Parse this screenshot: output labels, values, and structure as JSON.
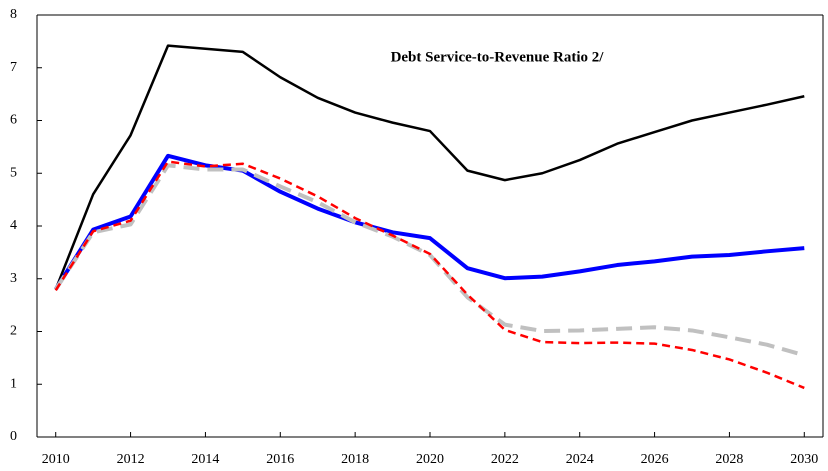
{
  "chart_data": {
    "type": "line",
    "title": "Debt Service-to-Revenue Ratio 2/",
    "x": [
      2010,
      2011,
      2012,
      2013,
      2014,
      2015,
      2016,
      2017,
      2018,
      2019,
      2020,
      2021,
      2022,
      2023,
      2024,
      2025,
      2026,
      2027,
      2028,
      2029,
      2030
    ],
    "series": [
      {
        "color": "#000000",
        "dash": "solid",
        "width": 2.5,
        "values": [
          2.8,
          4.6,
          5.72,
          7.42,
          7.36,
          7.3,
          6.82,
          6.43,
          6.15,
          5.96,
          5.8,
          5.05,
          4.87,
          5.0,
          5.25,
          5.56,
          5.78,
          6.0,
          6.15,
          6.3,
          6.46
        ]
      },
      {
        "color": "#0000ff",
        "dash": "solid",
        "width": 4,
        "values": [
          2.8,
          3.93,
          4.18,
          5.33,
          5.15,
          5.05,
          4.65,
          4.33,
          4.07,
          3.88,
          3.77,
          3.2,
          3.01,
          3.04,
          3.14,
          3.26,
          3.33,
          3.42,
          3.45,
          3.52,
          3.58
        ]
      },
      {
        "color": "#c0c0c0",
        "dash": "dashed",
        "width": 4,
        "values": [
          2.8,
          3.88,
          4.03,
          5.15,
          5.07,
          5.07,
          4.75,
          4.45,
          4.07,
          3.8,
          3.45,
          2.65,
          2.13,
          2.01,
          2.02,
          2.05,
          2.08,
          2.02,
          1.89,
          1.75,
          1.55
        ]
      },
      {
        "color": "#ff0000",
        "dash": "dashed",
        "width": 2.5,
        "values": [
          2.78,
          3.9,
          4.1,
          5.22,
          5.13,
          5.18,
          4.9,
          4.56,
          4.15,
          3.82,
          3.47,
          2.7,
          2.03,
          1.8,
          1.78,
          1.79,
          1.77,
          1.65,
          1.47,
          1.22,
          0.93
        ]
      }
    ],
    "xlim": [
      2009.5,
      2030.5
    ],
    "xticks": [
      2010,
      2012,
      2014,
      2016,
      2018,
      2020,
      2022,
      2024,
      2026,
      2028,
      2030
    ],
    "ylim": [
      0,
      8
    ],
    "yticks": [
      0,
      1,
      2,
      3,
      4,
      5,
      6,
      7,
      8
    ],
    "grid": false
  }
}
